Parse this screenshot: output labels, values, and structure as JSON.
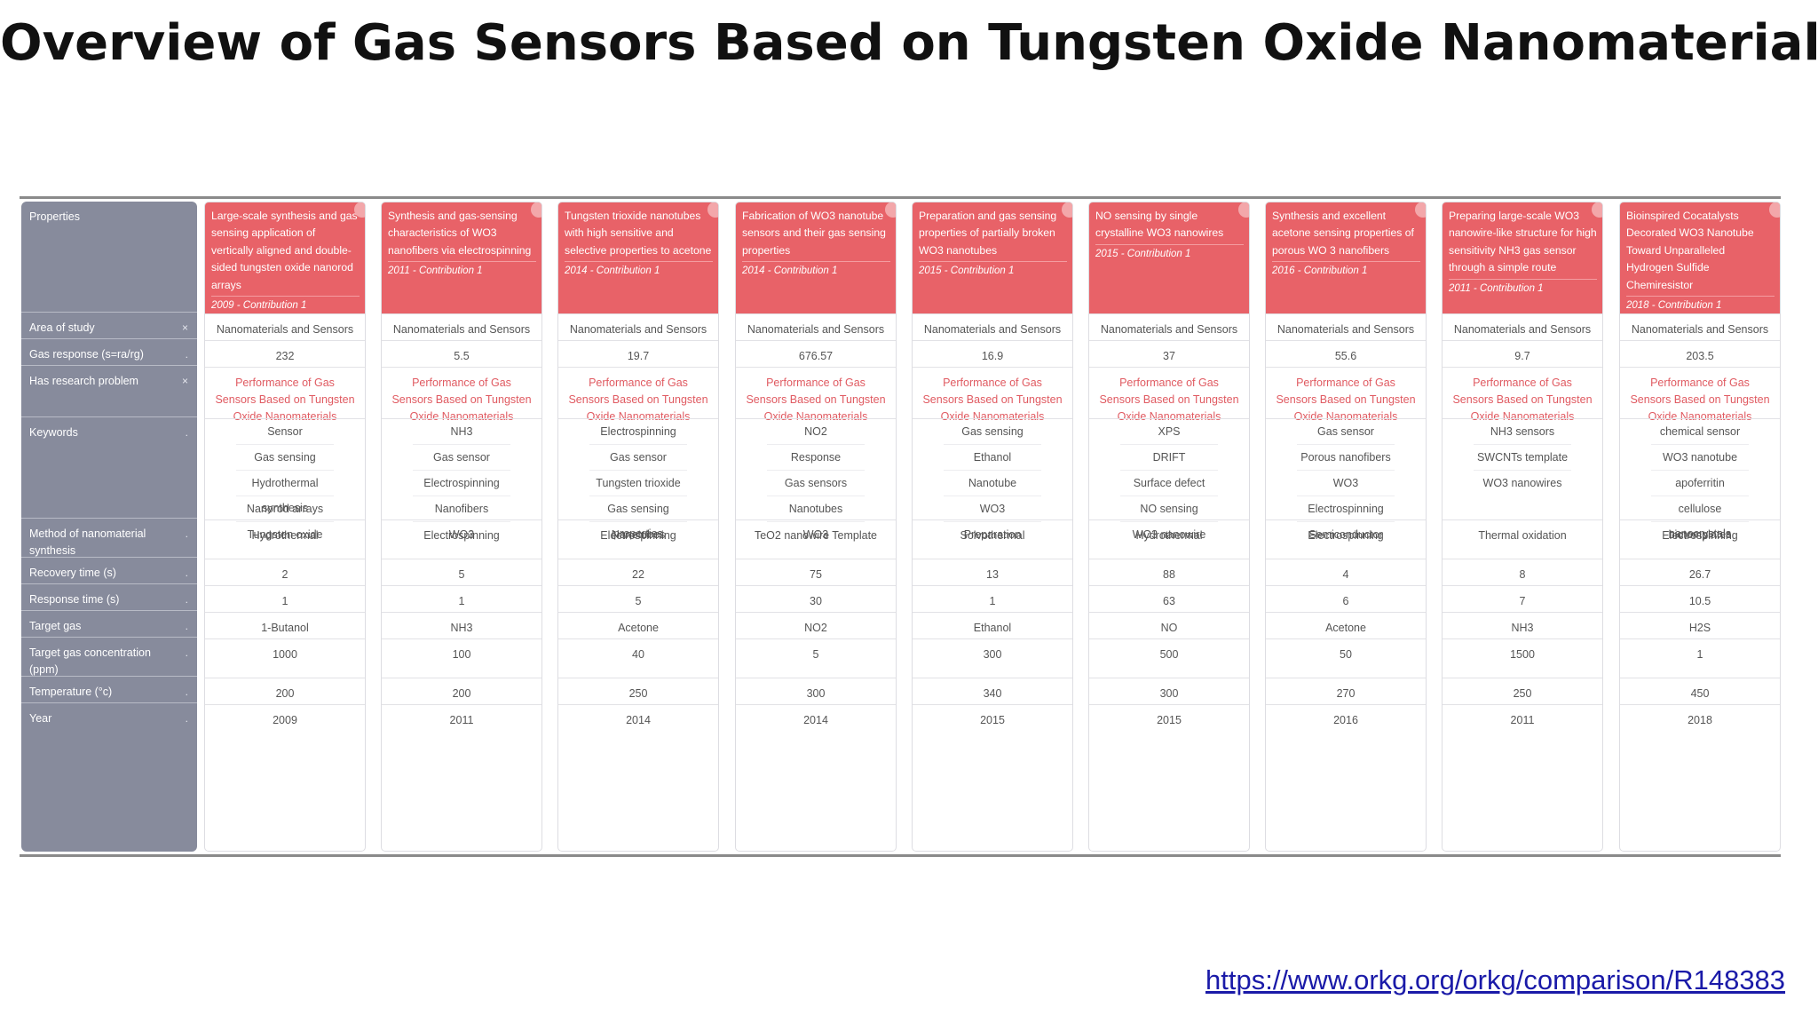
{
  "title": "Overview of Gas Sensors Based on Tungsten Oxide Nanomaterials",
  "link": "https://www.orkg.org/orkg/comparison/R148383",
  "colors": {
    "header_red": "#e86268",
    "props_bg": "#878b9c",
    "problem_text": "#e05a61"
  },
  "properties": [
    {
      "label": "Properties",
      "mark": ""
    },
    {
      "label": "Area of study",
      "mark": "×"
    },
    {
      "label": "Gas response (s=ra/rg)",
      "mark": "."
    },
    {
      "label": "Has research problem",
      "mark": "×"
    },
    {
      "label": "Keywords",
      "mark": "."
    },
    {
      "label": "Method of nanomaterial synthesis",
      "mark": "."
    },
    {
      "label": "Recovery time (s)",
      "mark": "."
    },
    {
      "label": "Response time (s)",
      "mark": "."
    },
    {
      "label": "Target gas",
      "mark": "."
    },
    {
      "label": "Target gas concentration (ppm)",
      "mark": "."
    },
    {
      "label": "Temperature (°c)",
      "mark": "."
    },
    {
      "label": "Year",
      "mark": "."
    }
  ],
  "contributions": [
    {
      "title": "Large-scale synthesis and gas sensing application of vertically aligned and double-sided tungsten oxide nanorod arrays",
      "meta": "2009 - Contribution 1",
      "area": "Nanomaterials and Sensors",
      "gas_response": "232",
      "problem": "Performance of Gas Sensors Based on Tungsten Oxide Nanomaterials",
      "keywords": [
        "Sensor",
        "Gas sensing",
        "Hydrothermal synthesis",
        "Nanorod arrays",
        "Tungsten oxide"
      ],
      "method": "Hydrothermal",
      "recovery": "2",
      "response": "1",
      "target_gas": "1-Butanol",
      "concentration": "1000",
      "temperature": "200",
      "year": "2009"
    },
    {
      "title": "Synthesis and gas-sensing characteristics of WO3 nanofibers via electrospinning",
      "meta": "2011 - Contribution 1",
      "area": "Nanomaterials and Sensors",
      "gas_response": "5.5",
      "problem": "Performance of Gas Sensors Based on Tungsten Oxide Nanomaterials",
      "keywords": [
        "NH3",
        "Gas sensor",
        "Electrospinning",
        "Nanofibers",
        "WO3"
      ],
      "method": "Electrospinning",
      "recovery": "5",
      "response": "1",
      "target_gas": "NH3",
      "concentration": "100",
      "temperature": "200",
      "year": "2011"
    },
    {
      "title": "Tungsten trioxide nanotubes with high sensitive and selective properties to acetone",
      "meta": "2014 - Contribution 1",
      "area": "Nanomaterials and Sensors",
      "gas_response": "19.7",
      "problem": "Performance of Gas Sensors Based on Tungsten Oxide Nanomaterials",
      "keywords": [
        "Electrospinning",
        "Gas sensor",
        "Tungsten trioxide",
        "Gas sensing properties",
        "Nanotubes"
      ],
      "method": "Electrospinning",
      "recovery": "22",
      "response": "5",
      "target_gas": "Acetone",
      "concentration": "40",
      "temperature": "250",
      "year": "2014"
    },
    {
      "title": "Fabrication of WO3 nanotube sensors and their gas sensing properties",
      "meta": "2014 - Contribution 1",
      "area": "Nanomaterials and Sensors",
      "gas_response": "676.57",
      "problem": "Performance of Gas Sensors Based on Tungsten Oxide Nanomaterials",
      "keywords": [
        "NO2",
        "Response",
        "Gas sensors",
        "Nanotubes",
        "WO3"
      ],
      "method": "TeO2 nanowire Template",
      "recovery": "75",
      "response": "30",
      "target_gas": "NO2",
      "concentration": "5",
      "temperature": "300",
      "year": "2014"
    },
    {
      "title": "Preparation and gas sensing properties of partially broken WO3 nanotubes",
      "meta": "2015 - Contribution 1",
      "area": "Nanomaterials and Sensors",
      "gas_response": "16.9",
      "problem": "Performance of Gas Sensors Based on Tungsten Oxide Nanomaterials",
      "keywords": [
        "Gas sensing",
        "Ethanol",
        "Nanotube",
        "WO3",
        "Preparation"
      ],
      "method": "Solvothermal",
      "recovery": "13",
      "response": "1",
      "target_gas": "Ethanol",
      "concentration": "300",
      "temperature": "340",
      "year": "2015"
    },
    {
      "title": "NO sensing by single crystalline WO3 nanowires",
      "meta": "2015 - Contribution 1",
      "area": "Nanomaterials and Sensors",
      "gas_response": "37",
      "problem": "Performance of Gas Sensors Based on Tungsten Oxide Nanomaterials",
      "keywords": [
        "XPS",
        "DRIFT",
        "Surface defect",
        "NO sensing",
        "WO3 nanowire"
      ],
      "method": "Hydrothermal",
      "recovery": "88",
      "response": "63",
      "target_gas": "NO",
      "concentration": "500",
      "temperature": "300",
      "year": "2015"
    },
    {
      "title": "Synthesis and excellent acetone sensing properties of porous WO 3 nanofibers",
      "meta": "2016 - Contribution 1",
      "area": "Nanomaterials and Sensors",
      "gas_response": "55.6",
      "problem": "Performance of Gas Sensors Based on Tungsten Oxide Nanomaterials",
      "keywords": [
        "Gas sensor",
        "Porous nanofibers",
        "WO3",
        "Electrospinning",
        "Semiconductor"
      ],
      "method": "Electrospinning",
      "recovery": "4",
      "response": "6",
      "target_gas": "Acetone",
      "concentration": "50",
      "temperature": "270",
      "year": "2016"
    },
    {
      "title": "Preparing large-scale WO3 nanowire-like structure for high sensitivity NH3 gas sensor through a simple route",
      "meta": "2011 - Contribution 1",
      "area": "Nanomaterials and Sensors",
      "gas_response": "9.7",
      "problem": "Performance of Gas Sensors Based on Tungsten Oxide Nanomaterials",
      "keywords": [
        "NH3 sensors",
        "SWCNTs template",
        "WO3 nanowires"
      ],
      "method": "Thermal oxidation",
      "recovery": "8",
      "response": "7",
      "target_gas": "NH3",
      "concentration": "1500",
      "temperature": "250",
      "year": "2011"
    },
    {
      "title": "Bioinspired Cocatalysts Decorated WO3 Nanotube Toward Unparalleled Hydrogen Sulfide Chemiresistor",
      "meta": "2018 - Contribution 1",
      "area": "Nanomaterials and Sensors",
      "gas_response": "203.5",
      "problem": "Performance of Gas Sensors Based on Tungsten Oxide Nanomaterials",
      "keywords": [
        "chemical sensor",
        "WO3 nanotube",
        "apoferritin",
        "cellulose nanocrystals",
        "biotemplates"
      ],
      "method": "Electrospinning",
      "recovery": "26.7",
      "response": "10.5",
      "target_gas": "H2S",
      "concentration": "1",
      "temperature": "450",
      "year": "2018"
    }
  ]
}
